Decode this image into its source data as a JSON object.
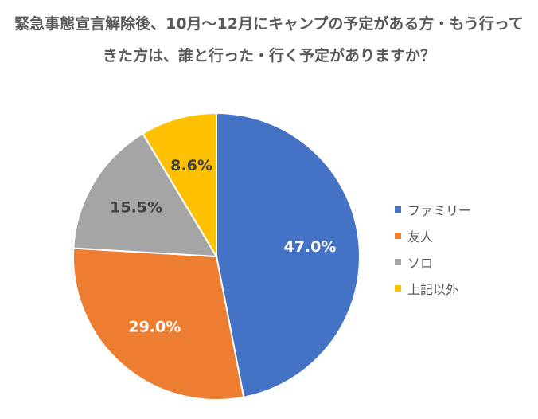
{
  "chart_data": {
    "type": "pie",
    "title": "緊急事態宣言解除後、10月〜12月にキャンプの予定がある方・もう行ってきた方は、誰と行った・行く予定がありますか？",
    "categories": [
      "ファミリー",
      "友人",
      "ソロ",
      "上記以外"
    ],
    "values": [
      47.0,
      29.0,
      15.5,
      8.6
    ],
    "data_labels": [
      "47.0%",
      "29.0%",
      "15.5%",
      "8.6%"
    ],
    "colors": [
      "#4472C4",
      "#ED7D31",
      "#A5A5A5",
      "#FFC000"
    ],
    "label_text_colors": [
      "#ffffff",
      "#ffffff",
      "#404040",
      "#404040"
    ],
    "legend_position": "right",
    "start_angle": "top",
    "direction": "clockwise"
  }
}
